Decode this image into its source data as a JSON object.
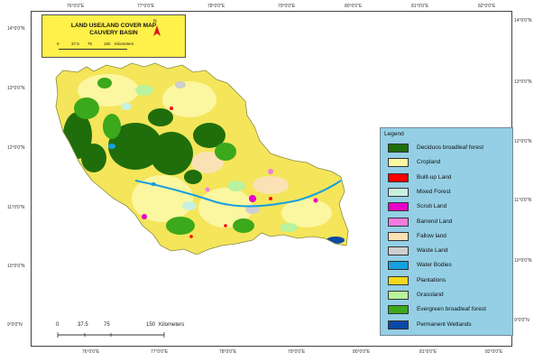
{
  "map": {
    "title_line1": "LAND USE/LAND COVER MAP",
    "title_line2": "CAUVERY BASIN",
    "north_label": "N",
    "lon_labels": [
      "76°0'0\"E",
      "77°0'0\"E",
      "78°0'0\"E",
      "79°0'0\"E",
      "80°0'0\"E",
      "81°0'0\"E",
      "82°0'0\"E"
    ],
    "lat_labels": [
      "14°0'0\"N",
      "13°0'0\"N",
      "12°0'0\"N",
      "11°0'0\"N",
      "10°0'0\"N",
      "9°0'0\"N"
    ],
    "scale_small": {
      "n0": "0",
      "n1": "37.5",
      "n2": "75",
      "n3": "150",
      "unit": "Kilometers"
    },
    "scale_main": {
      "n0": "0",
      "n1": "37.5",
      "n2": "75",
      "n3": "150",
      "unit": "Kilometers"
    }
  },
  "legend": {
    "title": "Legend",
    "items": [
      {
        "label": "Deciduos broadleaf forest",
        "color": "#1f6e0b"
      },
      {
        "label": "Cropland",
        "color": "#fbf6a0"
      },
      {
        "label": "Built-up Land",
        "color": "#ff0000"
      },
      {
        "label": "Mixed Forest",
        "color": "#c8f0df"
      },
      {
        "label": "Scrub Land",
        "color": "#e800c8"
      },
      {
        "label": "Barrend Land",
        "color": "#f47be0"
      },
      {
        "label": "Fallow land",
        "color": "#fbe2b4"
      },
      {
        "label": "Waste Land",
        "color": "#cfcfcf"
      },
      {
        "label": "Water Bodies",
        "color": "#14a0e0"
      },
      {
        "label": "Plantations",
        "color": "#f2d81e"
      },
      {
        "label": "Grassland",
        "color": "#b8f29c"
      },
      {
        "label": "Evergreen broadleaf forest",
        "color": "#3ca81c"
      },
      {
        "label": "Permanent Wetlands",
        "color": "#0a4aa6"
      }
    ]
  }
}
